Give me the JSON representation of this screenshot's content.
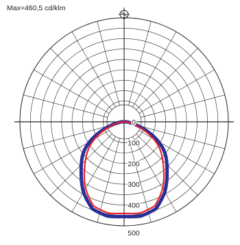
{
  "max_label": "Max=460,5 cd/klm",
  "symbol_icon": "luminaire-symbol-icon",
  "chart_data": {
    "type": "polar-line",
    "title": "Max=460,5 cd/klm",
    "unit": "cd/klm",
    "r_max": 500,
    "r_ticks": [
      0,
      100,
      200,
      300,
      400,
      500
    ],
    "r_tick_labels": [
      "0",
      "100",
      "200",
      "300",
      "400",
      "500"
    ],
    "angle_step_deg": 15,
    "grid": true,
    "colors": {
      "c0_c180": "#e8202a",
      "c90_c270": "#2a2f96",
      "grid": "#222222"
    },
    "series": [
      {
        "key": "c0_c180",
        "color": "#e8202a",
        "angles_deg": [
          0,
          10,
          20,
          30,
          40,
          45,
          50,
          55,
          60,
          65,
          70,
          75,
          80,
          85,
          90
        ],
        "values": [
          440,
          445,
          430,
          370,
          295,
          262,
          232,
          200,
          162,
          120,
          80,
          50,
          30,
          15,
          8
        ]
      },
      {
        "key": "c90_c270",
        "color": "#2a2f96",
        "angles_deg": [
          0,
          10,
          20,
          30,
          40,
          45,
          50,
          55,
          60,
          65,
          70,
          75,
          80,
          85,
          90
        ],
        "values": [
          455,
          460,
          445,
          390,
          320,
          290,
          262,
          230,
          190,
          145,
          100,
          62,
          35,
          18,
          10
        ]
      }
    ]
  }
}
